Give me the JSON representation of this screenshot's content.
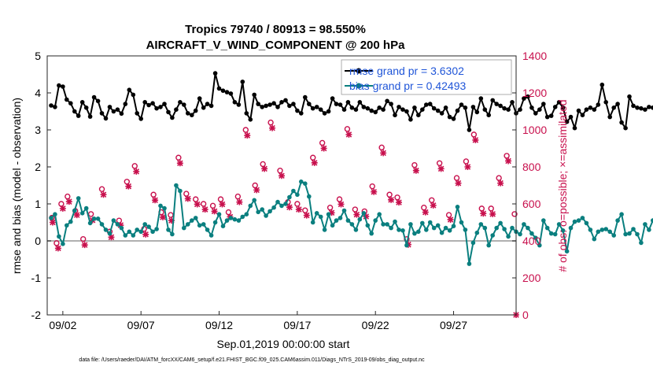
{
  "chart_data": {
    "type": "line",
    "title": "Tropics 79740 / 80913 = 98.550%",
    "subtitle": "AIRCRAFT_V_WIND_COMPONENT @ 200 hPa",
    "xlabel": "Sep.01,2019 00:00:00 start",
    "ylabel_left": "rmse and bias (model - observation)",
    "ylabel_right": "# of obs: o=possible; ×=assimilated",
    "footer": "data file: /Users/raeder/DAI/ATM_forcXX/CAM6_setup/f.e21.FHIST_BGC.f09_025.CAM6assim.011/Diags_NTrS_2019-09/obs_diag_output.nc",
    "x_tick_labels": [
      "09/02",
      "09/07",
      "09/12",
      "09/17",
      "09/22",
      "09/27"
    ],
    "x_tick_values": [
      2,
      7,
      12,
      17,
      22,
      27
    ],
    "xlim": [
      1.0,
      31.0
    ],
    "ylim_left": [
      -2,
      5
    ],
    "y_ticks_left": [
      -2,
      -1,
      0,
      1,
      2,
      3,
      4,
      5
    ],
    "ylim_right": [
      0,
      1400
    ],
    "y_ticks_right": [
      0,
      200,
      400,
      600,
      800,
      1000,
      1200,
      1400
    ],
    "legend": [
      {
        "label": "rmse grand pr = 3.6302",
        "color": "#000000"
      },
      {
        "label": "bias grand pr = 0.42493",
        "color": "#0a7f7f"
      }
    ],
    "colors": {
      "rmse": "#000000",
      "bias": "#0a7f7f",
      "nobs": "#c8104d",
      "zero_line": "#b0b0b0"
    },
    "series": [
      {
        "name": "rmse",
        "axis": "left",
        "x_start": 1.25,
        "x_step": 0.25,
        "values": [
          3.66,
          3.62,
          4.2,
          4.17,
          3.82,
          3.72,
          3.5,
          3.38,
          3.75,
          3.6,
          3.36,
          3.88,
          3.78,
          3.45,
          3.31,
          3.62,
          3.5,
          3.55,
          3.44,
          3.7,
          4.08,
          3.95,
          3.45,
          3.3,
          3.75,
          3.67,
          3.72,
          3.58,
          3.62,
          3.7,
          3.48,
          3.33,
          3.55,
          3.75,
          3.68,
          3.45,
          3.4,
          3.52,
          3.85,
          3.6,
          3.7,
          3.65,
          4.53,
          4.12,
          4.06,
          4.02,
          3.98,
          3.75,
          3.68,
          4.3,
          3.45,
          3.28,
          3.95,
          3.7,
          3.62,
          3.65,
          3.68,
          3.72,
          3.62,
          3.75,
          3.8,
          3.65,
          3.7,
          3.52,
          3.45,
          3.88,
          3.7,
          3.58,
          3.62,
          3.55,
          3.45,
          3.5,
          3.85,
          3.7,
          3.68,
          3.55,
          3.75,
          3.6,
          3.55,
          3.75,
          3.62,
          3.58,
          3.52,
          3.48,
          3.6,
          3.55,
          3.78,
          3.7,
          3.4,
          3.62,
          3.55,
          3.5,
          3.28,
          3.6,
          3.4,
          3.55,
          3.68,
          3.7,
          3.58,
          3.52,
          3.45,
          3.6,
          3.35,
          3.3,
          3.52,
          3.68,
          3.6,
          3.0,
          3.62,
          3.48,
          3.85,
          3.55,
          3.4,
          3.8,
          3.7,
          3.65,
          3.58,
          3.55,
          3.75,
          3.45,
          3.55,
          3.85,
          3.9,
          3.6,
          3.45,
          3.55,
          3.7,
          3.35,
          3.38,
          3.62,
          3.75,
          3.6,
          3.22,
          3.35,
          3.05,
          3.52,
          3.4,
          3.55,
          3.6,
          3.55,
          3.68,
          4.22,
          3.75,
          3.35,
          3.6,
          3.7,
          3.2,
          3.05,
          3.9,
          3.65,
          3.6,
          3.58,
          3.55,
          3.62,
          3.6
        ]
      },
      {
        "name": "bias",
        "axis": "left",
        "x_start": 1.25,
        "x_step": 0.25,
        "values": [
          0.62,
          0.72,
          0.12,
          -0.08,
          0.42,
          0.52,
          0.82,
          1.15,
          0.75,
          0.88,
          0.48,
          0.6,
          0.6,
          0.45,
          0.3,
          0.2,
          0.55,
          0.45,
          0.35,
          0.15,
          0.25,
          0.15,
          0.3,
          0.25,
          0.45,
          0.38,
          0.25,
          0.32,
          0.95,
          0.88,
          0.3,
          0.18,
          1.5,
          1.35,
          0.35,
          0.45,
          0.55,
          0.62,
          0.42,
          0.45,
          0.3,
          0.15,
          0.5,
          0.72,
          0.4,
          0.55,
          0.62,
          0.58,
          0.55,
          0.65,
          0.72,
          0.95,
          1.1,
          0.78,
          0.85,
          0.68,
          0.8,
          0.9,
          1.05,
          0.95,
          1.0,
          1.18,
          1.35,
          1.25,
          1.6,
          1.55,
          1.2,
          0.5,
          0.75,
          0.65,
          0.3,
          0.72,
          0.42,
          0.55,
          0.62,
          0.82,
          0.55,
          0.45,
          0.3,
          0.58,
          0.75,
          0.42,
          0.2,
          0.55,
          0.72,
          0.45,
          0.45,
          0.35,
          0.52,
          0.3,
          0.28,
          -0.12,
          0.45,
          0.2,
          0.25,
          0.48,
          0.3,
          0.5,
          0.35,
          0.42,
          0.22,
          0.35,
          0.28,
          0.4,
          0.92,
          0.5,
          0.3,
          -0.62,
          -0.05,
          0.22,
          0.45,
          0.35,
          -0.12,
          0.15,
          0.35,
          0.48,
          0.32,
          0.12,
          0.35,
          0.25,
          0.18,
          0.45,
          0.35,
          0.2,
          0.08,
          -0.12,
          0.55,
          0.35,
          0.2,
          0.18,
          0.45,
          0.28,
          -0.28,
          0.35,
          0.52,
          0.55,
          0.62,
          0.48,
          0.3,
          0.05,
          0.25,
          0.3,
          0.32,
          0.25,
          0.15,
          0.55,
          0.72,
          0.18,
          0.2,
          0.32,
          0.18,
          -0.05,
          0.45,
          0.3,
          0.55,
          0.85,
          0.95,
          0.75,
          0.6,
          0.72,
          0.62,
          0.45,
          0.35,
          0.95,
          0.92,
          1.15,
          0.55,
          0.62,
          1.25,
          1.18,
          0.35,
          0.42,
          0.55,
          0.62,
          0.58,
          0.48,
          0.62,
          0.55,
          0.38,
          0.62,
          0.72,
          1.42,
          0.6,
          0.42,
          0.5,
          0.62,
          0.75,
          1.0
        ]
      },
      {
        "name": "nobs_possible",
        "axis": "right",
        "x": [
          1.3,
          1.6,
          1.9,
          2.3,
          2.8,
          3.3,
          3.8,
          4.5,
          5.0,
          5.6,
          6.1,
          6.6,
          7.2,
          7.8,
          8.3,
          8.9,
          9.4,
          9.9,
          10.5,
          11.0,
          11.6,
          12.1,
          12.6,
          13.2,
          13.7,
          14.3,
          14.8,
          15.3,
          15.9,
          16.4,
          17.0,
          17.5,
          18.0,
          18.6,
          19.1,
          19.7,
          20.2,
          20.7,
          21.3,
          21.8,
          22.4,
          22.9,
          23.4,
          24.0,
          24.5,
          25.1,
          25.6,
          26.1,
          26.7,
          27.2,
          27.8,
          28.3,
          28.8,
          29.4,
          29.9,
          30.4,
          30.9
        ],
        "values": [
          525,
          388,
          600,
          640,
          562,
          410,
          545,
          680,
          450,
          510,
          720,
          805,
          465,
          650,
          555,
          540,
          850,
          655,
          625,
          600,
          590,
          625,
          555,
          640,
          1000,
          700,
          815,
          1040,
          780,
          610,
          600,
          565,
          850,
          930,
          580,
          625,
          1005,
          570,
          560,
          695,
          905,
          650,
          635,
          410,
          810,
          580,
          620,
          820,
          540,
          740,
          830,
          975,
          575,
          575,
          740,
          860,
          545
        ]
      },
      {
        "name": "nobs_assimilated",
        "axis": "right",
        "x": [
          1.35,
          1.7,
          2.0,
          2.4,
          2.9,
          3.4,
          3.9,
          4.6,
          5.1,
          5.7,
          6.2,
          6.7,
          7.3,
          7.9,
          8.4,
          8.95,
          9.5,
          10.0,
          10.6,
          11.1,
          11.7,
          12.2,
          12.7,
          13.3,
          13.8,
          14.4,
          14.9,
          15.4,
          16.0,
          16.5,
          17.1,
          17.6,
          18.1,
          18.7,
          19.2,
          19.8,
          20.3,
          20.8,
          21.4,
          21.9,
          22.5,
          23.0,
          23.5,
          24.1,
          24.6,
          25.2,
          25.7,
          26.2,
          26.8,
          27.3,
          27.9,
          28.4,
          28.9,
          29.5,
          30.0,
          30.5,
          31.0
        ],
        "values": [
          500,
          360,
          575,
          612,
          540,
          378,
          512,
          650,
          420,
          485,
          695,
          775,
          435,
          620,
          528,
          510,
          820,
          628,
          598,
          570,
          560,
          598,
          530,
          610,
          970,
          675,
          790,
          1010,
          752,
          582,
          570,
          538,
          822,
          900,
          552,
          598,
          975,
          542,
          532,
          665,
          875,
          622,
          608,
          380,
          780,
          555,
          592,
          790,
          515,
          712,
          800,
          945,
          548,
          545,
          712,
          832,
          0
        ]
      }
    ]
  }
}
